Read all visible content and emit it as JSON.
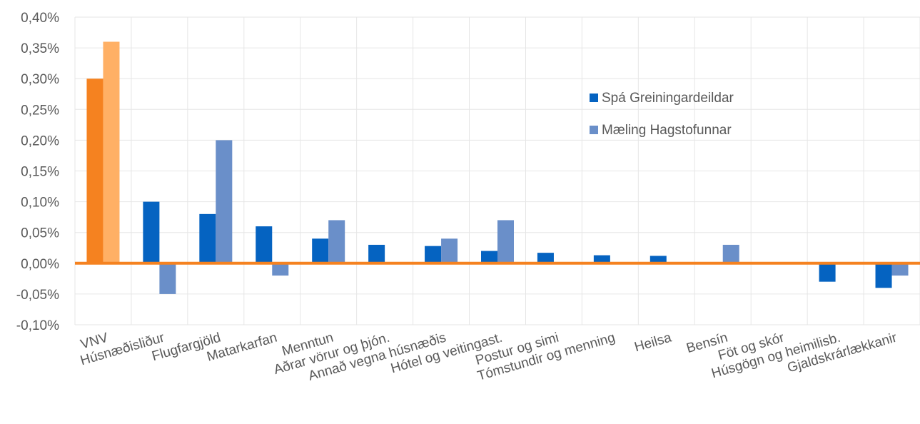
{
  "chart_data": {
    "type": "bar",
    "categories": [
      "VNV",
      "Húsnæðisliður",
      "Flugfargjöld",
      "Matarkarfan",
      "Menntun",
      "Aðrar vörur og þjón.",
      "Annað vegna húsnæðis",
      "Hótel og veitingast.",
      "Postur og simi",
      "Tómstundir og menning",
      "Heilsa",
      "Bensín",
      "Föt og skór",
      "Húsgögn og heimilisb.",
      "Gjaldskrárlækkanir"
    ],
    "series": [
      {
        "name": "Spá Greiningardeildar",
        "values": [
          0.3,
          0.1,
          0.08,
          0.06,
          0.04,
          0.03,
          0.028,
          0.02,
          0.017,
          0.013,
          0.012,
          0.0,
          0.0,
          -0.03,
          -0.04
        ]
      },
      {
        "name": "Mæling Hagstofunnar",
        "values": [
          0.36,
          -0.05,
          0.2,
          -0.02,
          0.07,
          0.0,
          0.04,
          0.07,
          0.0,
          0.0,
          0.0,
          0.03,
          0.0,
          0.0,
          -0.02
        ]
      }
    ],
    "highlight_category": "VNV",
    "ylim": [
      -0.1,
      0.4
    ],
    "ytick_step": 0.05,
    "ytick_labels": [
      "-0,10%",
      "-0,05%",
      "0,00%",
      "0,05%",
      "0,10%",
      "0,15%",
      "0,20%",
      "0,25%",
      "0,30%",
      "0,35%",
      "0,40%"
    ],
    "grid": true,
    "legend_position": "top-right",
    "colors": {
      "series1": "#0563c1",
      "series2": "#6a8fc9",
      "highlight1": "#f58220",
      "highlight2": "#ffb065",
      "zero_line": "#f58220",
      "grid": "#e6e6e6",
      "text": "#595959"
    }
  }
}
